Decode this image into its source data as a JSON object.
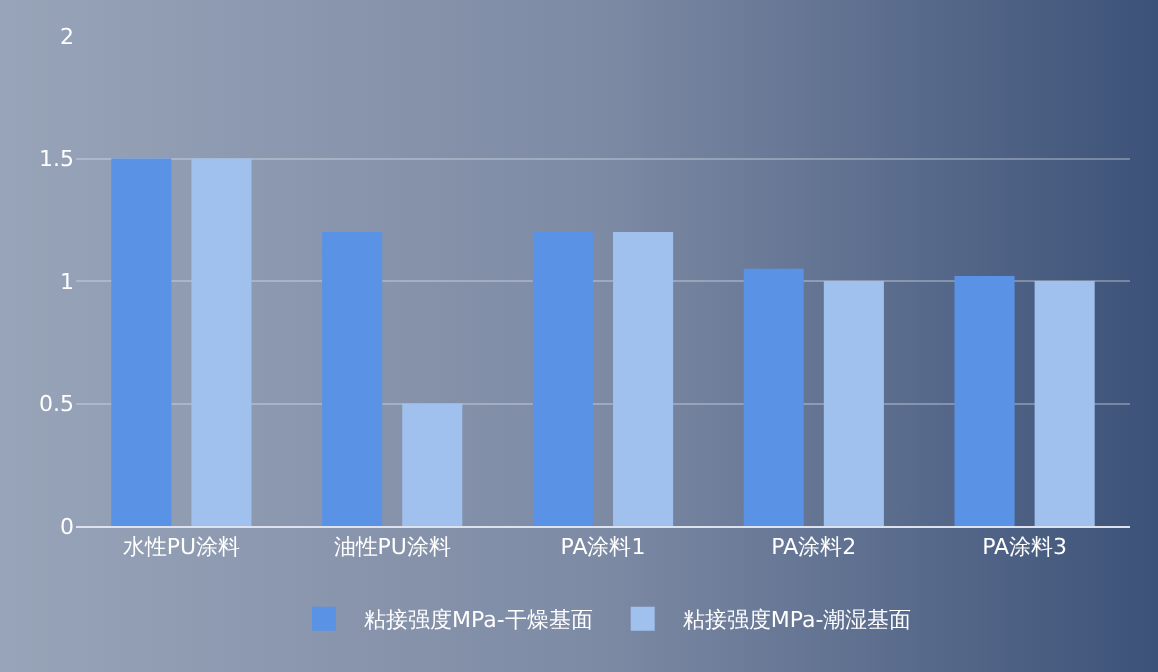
{
  "chart_data": {
    "type": "bar",
    "categories": [
      "水性PU涂料",
      "油性PU涂料",
      "PA涂料1",
      "PA涂料2",
      "PA涂料3"
    ],
    "series": [
      {
        "name": "粘接强度MPa-干燥基面",
        "color": "#5a92e6",
        "values": [
          1.5,
          1.2,
          1.2,
          1.05,
          1.02
        ]
      },
      {
        "name": "粘接强度MPa-潮湿基面",
        "color": "#a0c0ee",
        "values": [
          1.5,
          0.5,
          1.2,
          1.0,
          1.0
        ]
      }
    ],
    "ylim": [
      0,
      2
    ],
    "yticks": [
      0,
      0.5,
      1,
      1.5,
      2
    ],
    "grid": "y",
    "legend": "bottom"
  }
}
